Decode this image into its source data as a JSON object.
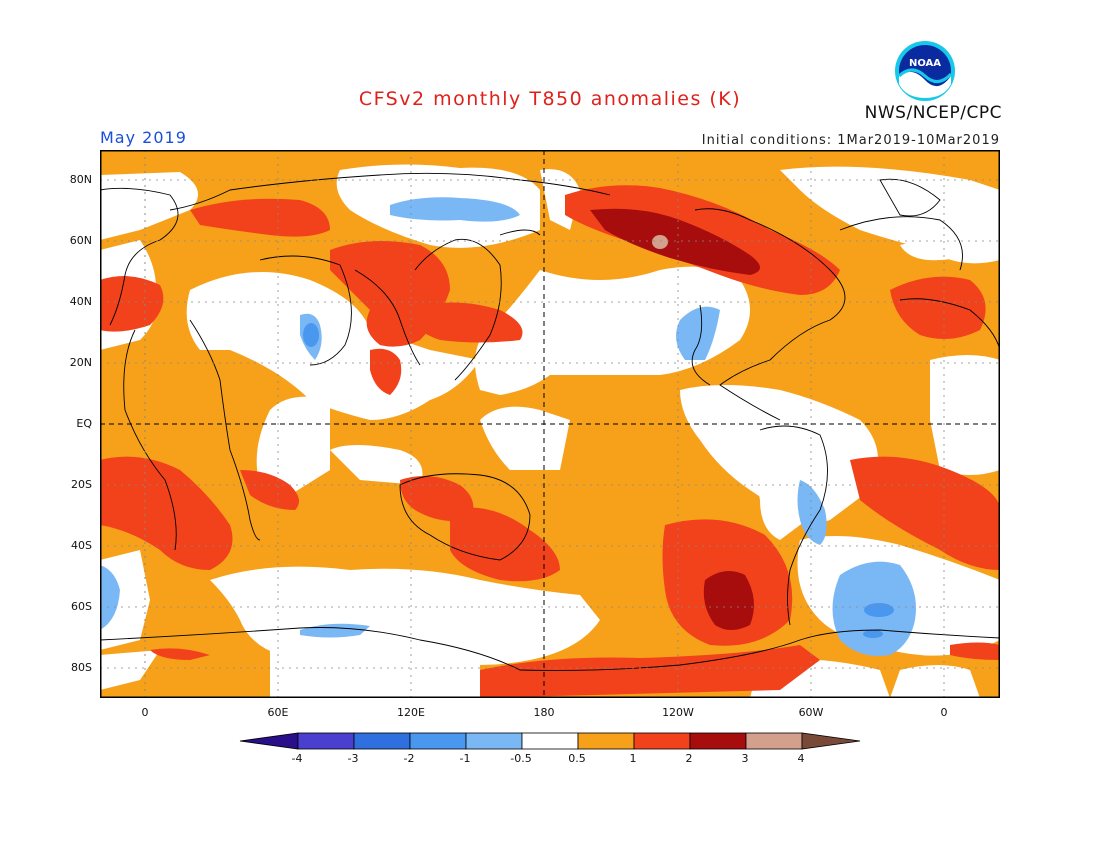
{
  "header": {
    "title": "CFSv2 monthly T850 anomalies (K)",
    "agency": "NWS/NCEP/CPC",
    "logo_text": "NOAA"
  },
  "map": {
    "month_label": "May 2019",
    "initial_conditions": "Initial conditions: 1Mar2019-10Mar2019",
    "lat_labels": [
      "80N",
      "60N",
      "40N",
      "20N",
      "EQ",
      "20S",
      "40S",
      "60S",
      "80S"
    ],
    "lon_labels": [
      "0",
      "60E",
      "120E",
      "180",
      "120W",
      "60W",
      "0"
    ]
  },
  "colorbar": {
    "labels": [
      "-4",
      "-3",
      "-2",
      "-1",
      "-0.5",
      "0.5",
      "1",
      "2",
      "3",
      "4"
    ],
    "colors": [
      "#2a0f8a",
      "#4b3fd0",
      "#2f6fe0",
      "#4a97ef",
      "#7ab8f5",
      "#ffffff",
      "#f7a11a",
      "#f2421c",
      "#a80d0d",
      "#d4a08e",
      "#7a4a38"
    ]
  },
  "colors": {
    "title": "#e0201a",
    "month": "#1a4fd8",
    "orange": "#f7a11a",
    "red": "#f2421c",
    "darkred": "#a80d0d",
    "pink": "#d4a08e",
    "lightblue": "#7ab8f5",
    "blue": "#4a97ef"
  }
}
